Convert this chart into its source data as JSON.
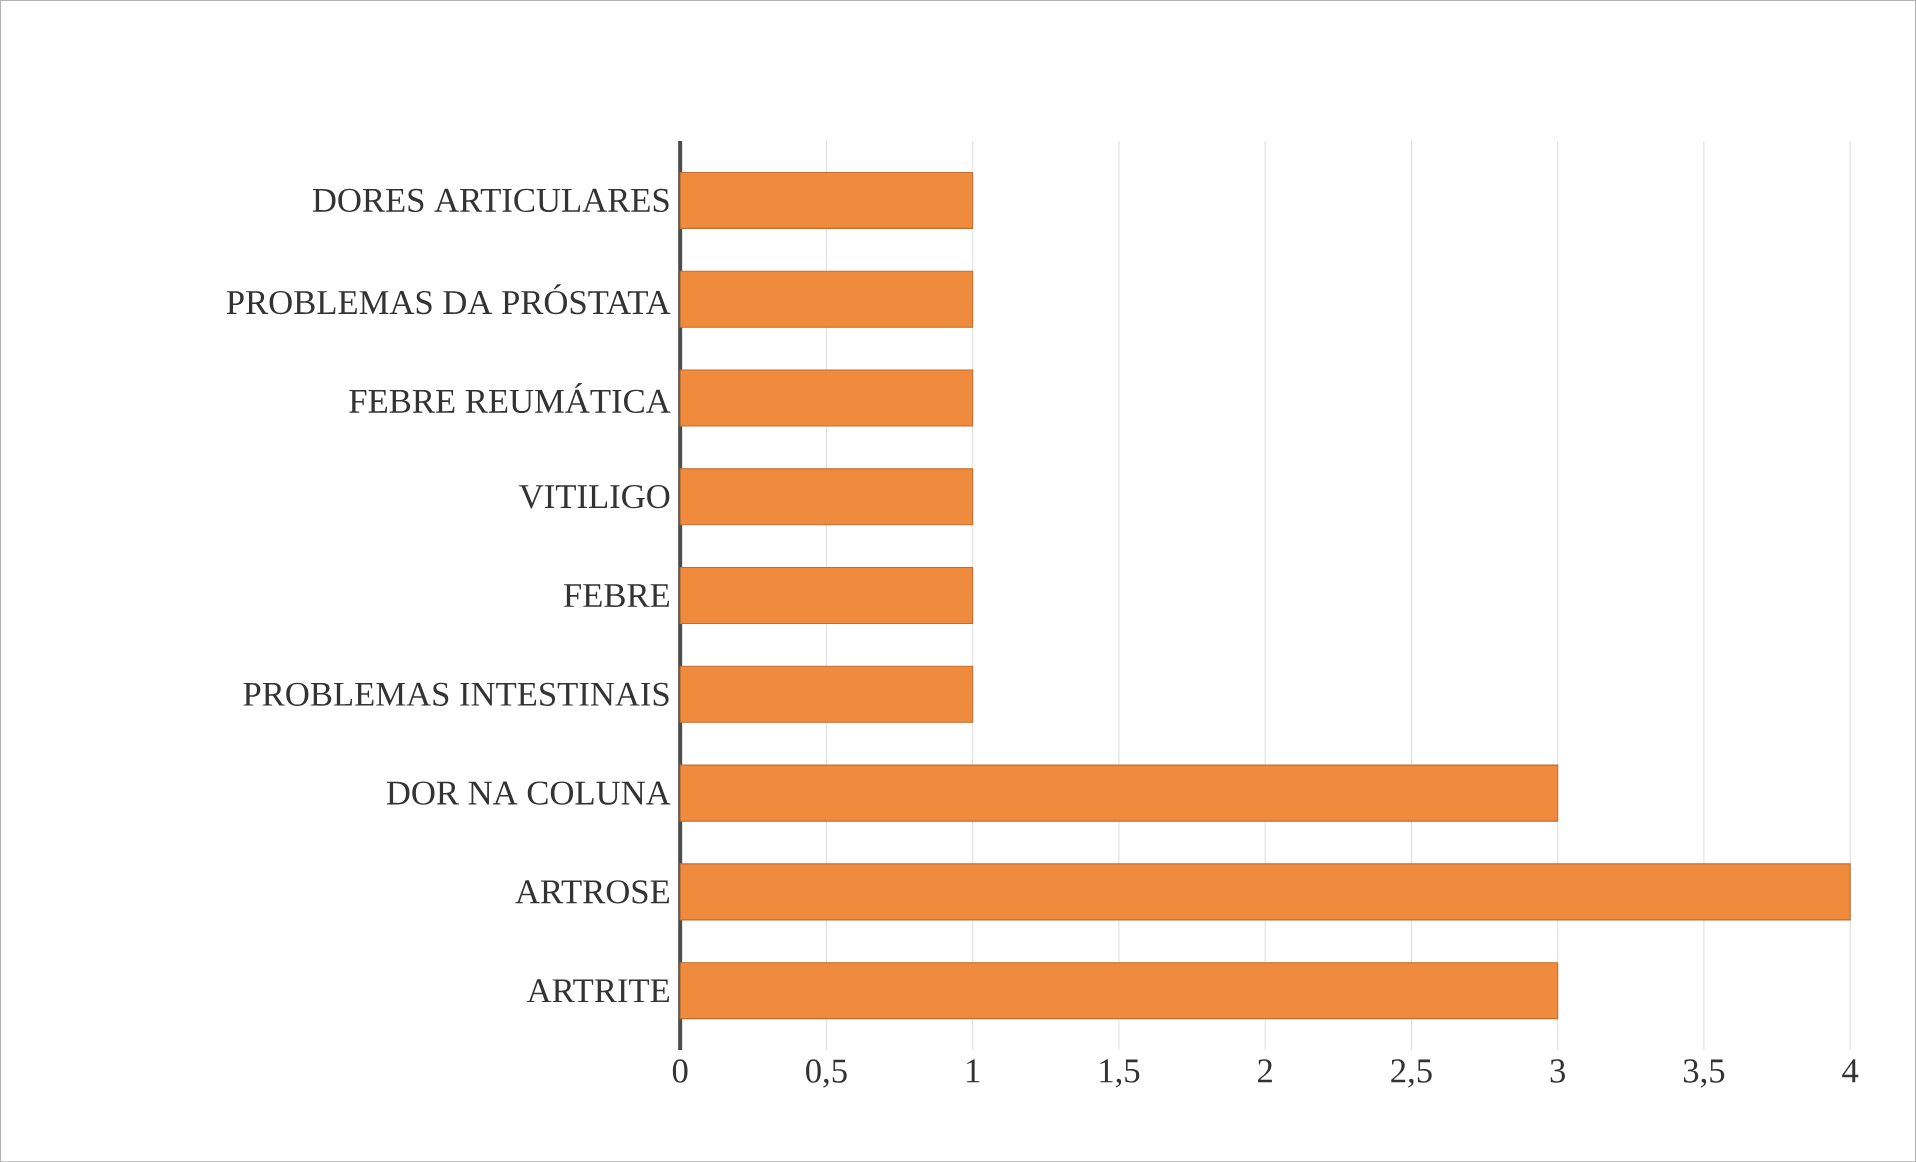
{
  "chart_data": {
    "type": "bar",
    "orientation": "horizontal",
    "categories": [
      "DORES ARTICULARES",
      "PROBLEMAS DA PRÓSTATA",
      "FEBRE REUMÁTICA",
      "VITILIGO",
      "FEBRE",
      "PROBLEMAS INTESTINAIS",
      "DOR NA COLUNA",
      "ARTROSE",
      "ARTRITE"
    ],
    "values": [
      1,
      1,
      1,
      1,
      1,
      1,
      3,
      4,
      3
    ],
    "color": "#f08a3c",
    "xlim": [
      0,
      4
    ],
    "xticks": [
      0,
      {
        "value": 0.5,
        "label": "0,5"
      },
      1,
      {
        "value": 1.5,
        "label": "1,5"
      },
      2,
      {
        "value": 2.5,
        "label": "2,5"
      },
      3,
      {
        "value": 3.5,
        "label": "3,5"
      },
      4
    ],
    "grid": "x"
  }
}
